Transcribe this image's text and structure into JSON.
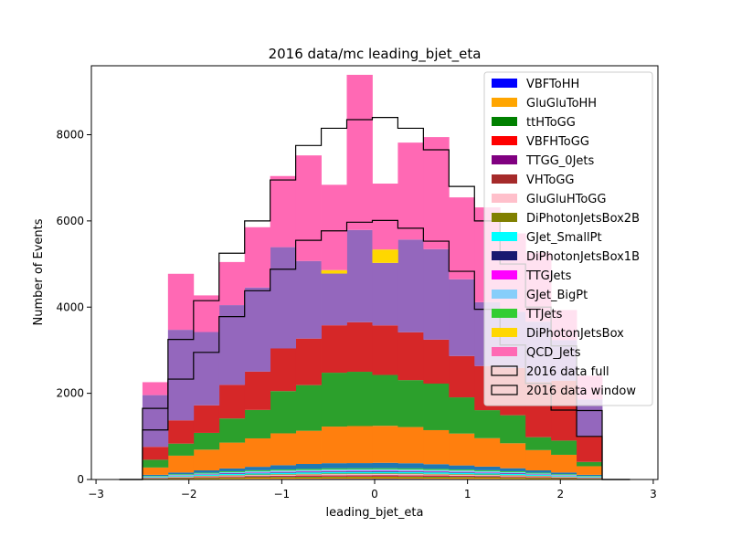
{
  "chart_data": {
    "type": "bar",
    "title": "2016 data/mc leading_bjet_eta",
    "xlabel": "leading_bjet_eta",
    "ylabel": "Number of Events",
    "xlim": [
      -3.05,
      3.05
    ],
    "ylim": [
      0,
      9600
    ],
    "xticks": [
      -3,
      -2,
      -1,
      0,
      1,
      2,
      3
    ],
    "yticks": [
      0,
      2000,
      4000,
      6000,
      8000
    ],
    "bin_edges": [
      -2.75,
      -2.5,
      -2.225,
      -1.95,
      -1.675,
      -1.4,
      -1.125,
      -0.85,
      -0.575,
      -0.3,
      -0.025,
      0.25,
      0.525,
      0.8,
      1.075,
      1.35,
      1.625,
      1.9,
      2.175,
      2.45,
      2.75
    ],
    "legend_position": "top-right",
    "grid": false,
    "stacked_series": [
      {
        "name": "VBFToHH",
        "color": "#0000ff",
        "values": [
          0,
          5,
          8,
          10,
          12,
          14,
          15,
          16,
          17,
          17,
          18,
          17,
          16,
          15,
          14,
          12,
          10,
          8,
          5,
          0
        ]
      },
      {
        "name": "GluGluToHH",
        "color": "#ffa500",
        "values": [
          0,
          10,
          15,
          20,
          25,
          28,
          30,
          32,
          33,
          34,
          34,
          33,
          32,
          30,
          28,
          25,
          20,
          15,
          10,
          0
        ]
      },
      {
        "name": "ttHToGG",
        "color": "#008000",
        "values": [
          0,
          5,
          8,
          10,
          12,
          14,
          15,
          16,
          17,
          17,
          17,
          17,
          16,
          15,
          14,
          12,
          10,
          8,
          5,
          0
        ]
      },
      {
        "name": "VBFHToGG",
        "color": "#ff0000",
        "values": [
          0,
          5,
          7,
          9,
          11,
          12,
          13,
          14,
          15,
          15,
          15,
          15,
          14,
          13,
          12,
          11,
          9,
          7,
          5,
          0
        ]
      },
      {
        "name": "TTGG_0Jets",
        "color": "#800080",
        "values": [
          0,
          3,
          5,
          6,
          7,
          8,
          9,
          9,
          10,
          10,
          10,
          10,
          9,
          9,
          8,
          7,
          6,
          5,
          3,
          0
        ]
      },
      {
        "name": "VHToGG",
        "color": "#a52a2a",
        "values": [
          0,
          3,
          4,
          5,
          6,
          7,
          7,
          8,
          8,
          8,
          8,
          8,
          8,
          7,
          7,
          6,
          5,
          4,
          3,
          0
        ]
      },
      {
        "name": "GluGluHToGG",
        "color": "#ffc0cb",
        "values": [
          0,
          8,
          12,
          15,
          18,
          20,
          22,
          23,
          24,
          24,
          24,
          24,
          23,
          22,
          20,
          18,
          15,
          12,
          8,
          0
        ]
      },
      {
        "name": "DiPhotonJetsBox2B",
        "color": "#808000",
        "values": [
          0,
          5,
          8,
          10,
          12,
          13,
          14,
          15,
          16,
          16,
          16,
          16,
          15,
          14,
          13,
          12,
          10,
          8,
          5,
          0
        ]
      },
      {
        "name": "GJet_SmallPt",
        "color": "#00ffff",
        "values": [
          0,
          10,
          15,
          20,
          25,
          28,
          30,
          32,
          33,
          34,
          34,
          33,
          32,
          30,
          28,
          25,
          20,
          15,
          10,
          0
        ]
      },
      {
        "name": "DiPhotonJetsBox1B",
        "color": "#191970",
        "values": [
          0,
          4,
          6,
          8,
          10,
          11,
          12,
          13,
          14,
          14,
          14,
          14,
          13,
          12,
          11,
          10,
          8,
          6,
          4,
          0
        ]
      },
      {
        "name": "TTGJets",
        "color": "#ff00ff",
        "values": [
          0,
          3,
          5,
          6,
          8,
          9,
          10,
          10,
          11,
          11,
          11,
          11,
          10,
          10,
          9,
          8,
          6,
          5,
          3,
          0
        ]
      },
      {
        "name": "GJet_BigPt",
        "color": "#87cefa",
        "values": [
          0,
          10,
          15,
          20,
          25,
          28,
          30,
          32,
          34,
          34,
          34,
          33,
          32,
          30,
          28,
          25,
          20,
          15,
          10,
          0
        ]
      },
      {
        "name": "TTJets",
        "color": "#32cd32",
        "values": [
          0,
          12,
          15,
          18,
          20,
          22,
          24,
          25,
          26,
          26,
          26,
          26,
          25,
          24,
          22,
          20,
          18,
          15,
          12,
          0
        ]
      },
      {
        "name": "DiPhotonJetsBox",
        "color": "#ffd700",
        "values": [
          0,
          0,
          0,
          0,
          0,
          0,
          0,
          0,
          80,
          0,
          310,
          0,
          0,
          0,
          0,
          0,
          0,
          0,
          0,
          0
        ]
      },
      {
        "name": "QCD_Jets",
        "color": "#ff69b4",
        "values": [
          0,
          300,
          1300,
          850,
          1000,
          1400,
          1650,
          2450,
          1980,
          3600,
          1530,
          2250,
          2600,
          1900,
          2200,
          1820,
          1600,
          700,
          550,
          0
        ]
      }
    ],
    "inner_layers": [
      {
        "color": "#1f77b4",
        "values": [
          0,
          25,
          40,
          55,
          65,
          80,
          100,
          115,
          120,
          120,
          125,
          120,
          110,
          95,
          85,
          70,
          55,
          40,
          25,
          0
        ]
      },
      {
        "color": "#ff7f0e",
        "values": [
          0,
          170,
          390,
          480,
          600,
          660,
          740,
          770,
          850,
          860,
          860,
          840,
          790,
          740,
          660,
          580,
          470,
          410,
          200,
          0
        ]
      },
      {
        "color": "#2ca02c",
        "values": [
          0,
          180,
          280,
          390,
          560,
          660,
          980,
          1060,
          1250,
          1260,
          1180,
          1090,
          1080,
          840,
          650,
          650,
          300,
          330,
          100,
          0
        ]
      },
      {
        "color": "#d62728",
        "values": [
          0,
          300,
          540,
          640,
          780,
          890,
          990,
          1080,
          1100,
          1150,
          1150,
          1110,
          1020,
          960,
          1025,
          1100,
          1280,
          1390,
          600,
          0
        ]
      },
      {
        "color": "#9467bd",
        "values": [
          0,
          1200,
          2100,
          1700,
          1850,
          1950,
          2350,
          1800,
          1200,
          2140,
          1450,
          2150,
          2100,
          1780,
          1480,
          1300,
          1400,
          940,
          850,
          0
        ]
      }
    ],
    "data_full": [
      0,
      1650,
      3250,
      4150,
      5250,
      6000,
      6950,
      7750,
      8150,
      8350,
      8400,
      8150,
      7650,
      6800,
      6000,
      5000,
      4000,
      3100,
      1600,
      0
    ],
    "data_window": [
      0,
      1150,
      2330,
      2950,
      3780,
      4380,
      4880,
      5550,
      5770,
      5970,
      6010,
      5830,
      5530,
      4830,
      3950,
      3120,
      2230,
      1610,
      1000,
      0
    ],
    "legend": [
      {
        "label": "VBFToHH",
        "color": "#0000ff",
        "kind": "fill"
      },
      {
        "label": "GluGluToHH",
        "color": "#ffa500",
        "kind": "fill"
      },
      {
        "label": "ttHToGG",
        "color": "#008000",
        "kind": "fill"
      },
      {
        "label": "VBFHToGG",
        "color": "#ff0000",
        "kind": "fill"
      },
      {
        "label": "TTGG_0Jets",
        "color": "#800080",
        "kind": "fill"
      },
      {
        "label": "VHToGG",
        "color": "#a52a2a",
        "kind": "fill"
      },
      {
        "label": "GluGluHToGG",
        "color": "#ffc0cb",
        "kind": "fill"
      },
      {
        "label": "DiPhotonJetsBox2B",
        "color": "#808000",
        "kind": "fill"
      },
      {
        "label": "GJet_SmallPt",
        "color": "#00ffff",
        "kind": "fill"
      },
      {
        "label": "DiPhotonJetsBox1B",
        "color": "#191970",
        "kind": "fill"
      },
      {
        "label": "TTGJets",
        "color": "#ff00ff",
        "kind": "fill"
      },
      {
        "label": "GJet_BigPt",
        "color": "#87cefa",
        "kind": "fill"
      },
      {
        "label": "TTJets",
        "color": "#32cd32",
        "kind": "fill"
      },
      {
        "label": "DiPhotonJetsBox",
        "color": "#ffd700",
        "kind": "fill"
      },
      {
        "label": "QCD_Jets",
        "color": "#ff69b4",
        "kind": "fill"
      },
      {
        "label": "2016 data full",
        "color": "#000000",
        "kind": "outline"
      },
      {
        "label": "2016 data window",
        "color": "#000000",
        "kind": "outline"
      }
    ]
  }
}
